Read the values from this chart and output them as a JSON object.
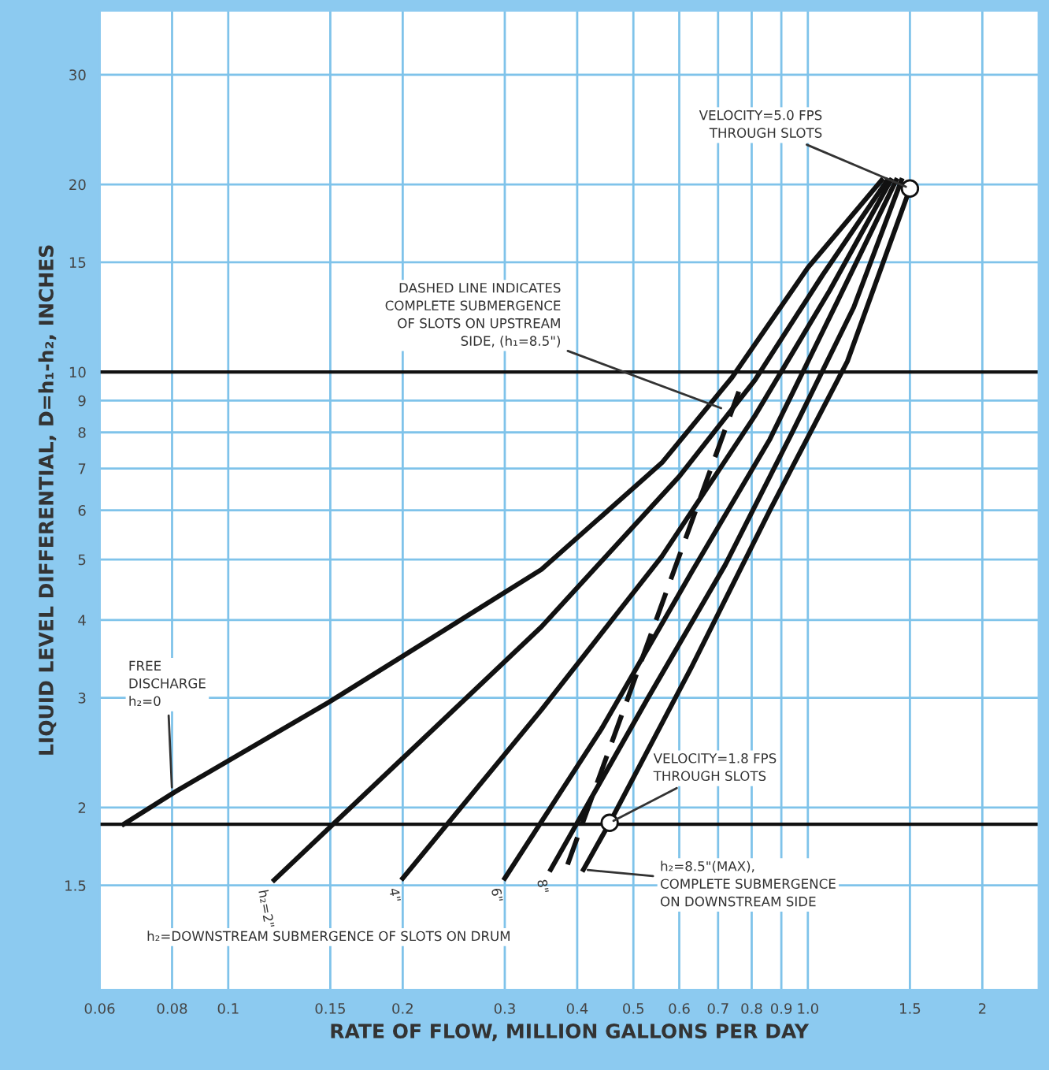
{
  "chart_data": {
    "type": "line",
    "xlabel": "RATE OF FLOW, MILLION GALLONS PER DAY",
    "ylabel": "LIQUID LEVEL DIFFERENTIAL, D=h₁-h₂, INCHES",
    "log": "xy",
    "grid": true,
    "xlim": [
      0.06,
      2.5
    ],
    "ylim": [
      1.02,
      38
    ],
    "xticks": [
      0.06,
      0.08,
      0.1,
      0.15,
      0.2,
      0.3,
      0.4,
      0.5,
      0.6,
      0.7,
      0.8,
      0.9,
      {
        "value": 1,
        "label": "1.0"
      },
      1.5,
      2
    ],
    "yticks": [
      1.5,
      2,
      3,
      4,
      5,
      6,
      7,
      8,
      9,
      10,
      15,
      20,
      30
    ],
    "series": [
      {
        "color": "#111111",
        "x": [
          0.066,
          0.081,
          0.149,
          0.347,
          0.56,
          0.74,
          1.0,
          1.34
        ],
        "values": [
          1.88,
          2.12,
          2.95,
          4.82,
          7.15,
          9.8,
          14.7,
          20.3
        ]
      },
      {
        "name": "h₂=2\"",
        "color": "#111111",
        "x": [
          0.12,
          0.347,
          0.6,
          0.81,
          1.06,
          1.37
        ],
        "values": [
          1.53,
          3.9,
          6.8,
          9.7,
          14.3,
          20.3
        ]
      },
      {
        "name": "4\"",
        "color": "#111111",
        "x": [
          0.2,
          0.347,
          0.56,
          0.81,
          1.09,
          1.39
        ],
        "values": [
          1.54,
          2.87,
          5.06,
          8.5,
          13.5,
          20.3
        ]
      },
      {
        "name": "6\"",
        "color": "#111111",
        "x": [
          0.3,
          0.44,
          0.63,
          0.86,
          1.13,
          1.42
        ],
        "values": [
          1.54,
          2.67,
          4.77,
          7.8,
          13.1,
          20.3
        ]
      },
      {
        "name": "8\"",
        "color": "#111111",
        "x": [
          0.36,
          0.53,
          0.72,
          0.94,
          1.2,
          1.45
        ],
        "values": [
          1.59,
          3.0,
          4.9,
          8.0,
          12.7,
          20.3
        ]
      },
      {
        "color": "#111111",
        "x": [
          0.41,
          0.455,
          0.63,
          0.86,
          1.17,
          1.5
        ],
        "values": [
          1.59,
          1.89,
          3.36,
          6.0,
          10.4,
          19.7
        ]
      },
      {
        "color": "#111111",
        "line_style": "dashed",
        "x": [
          0.385,
          0.76
        ],
        "values": [
          1.62,
          9.3
        ]
      },
      {
        "type": "scatter",
        "marker": "circle",
        "color": "#111111",
        "x": [
          0.455,
          1.5
        ],
        "values": [
          1.89,
          19.7
        ]
      }
    ],
    "ref_lines": [
      {
        "axis": "y",
        "value": 10,
        "color": "#111111"
      },
      {
        "axis": "y",
        "value": 1.88,
        "color": "#111111"
      }
    ],
    "annotations": [
      {
        "text": "VELOCITY=5.0 FPS\nTHROUGH SLOTS",
        "x": 1.5,
        "y": 19.7
      },
      {
        "text": "DASHED LINE INDICATES\nCOMPLETE SUBMERGENCE\nOF SLOTS ON UPSTREAM\nSIDE, (h₁=8.5\")",
        "x": 0.72,
        "y": 8.7
      },
      {
        "text": "FREE\nDISCHARGE\nh₂=0",
        "x": 0.08,
        "y": 2.12
      },
      {
        "text": "VELOCITY=1.8 FPS\nTHROUGH SLOTS",
        "x": 0.455,
        "y": 1.89
      },
      {
        "text": "h₂=8.5\"(MAX),\nCOMPLETE SUBMERGENCE\nON DOWNSTREAM SIDE",
        "x": 0.41,
        "y": 1.59
      },
      "h₂=DOWNSTREAM SUBMERGENCE OF SLOTS ON DRUM"
    ]
  }
}
